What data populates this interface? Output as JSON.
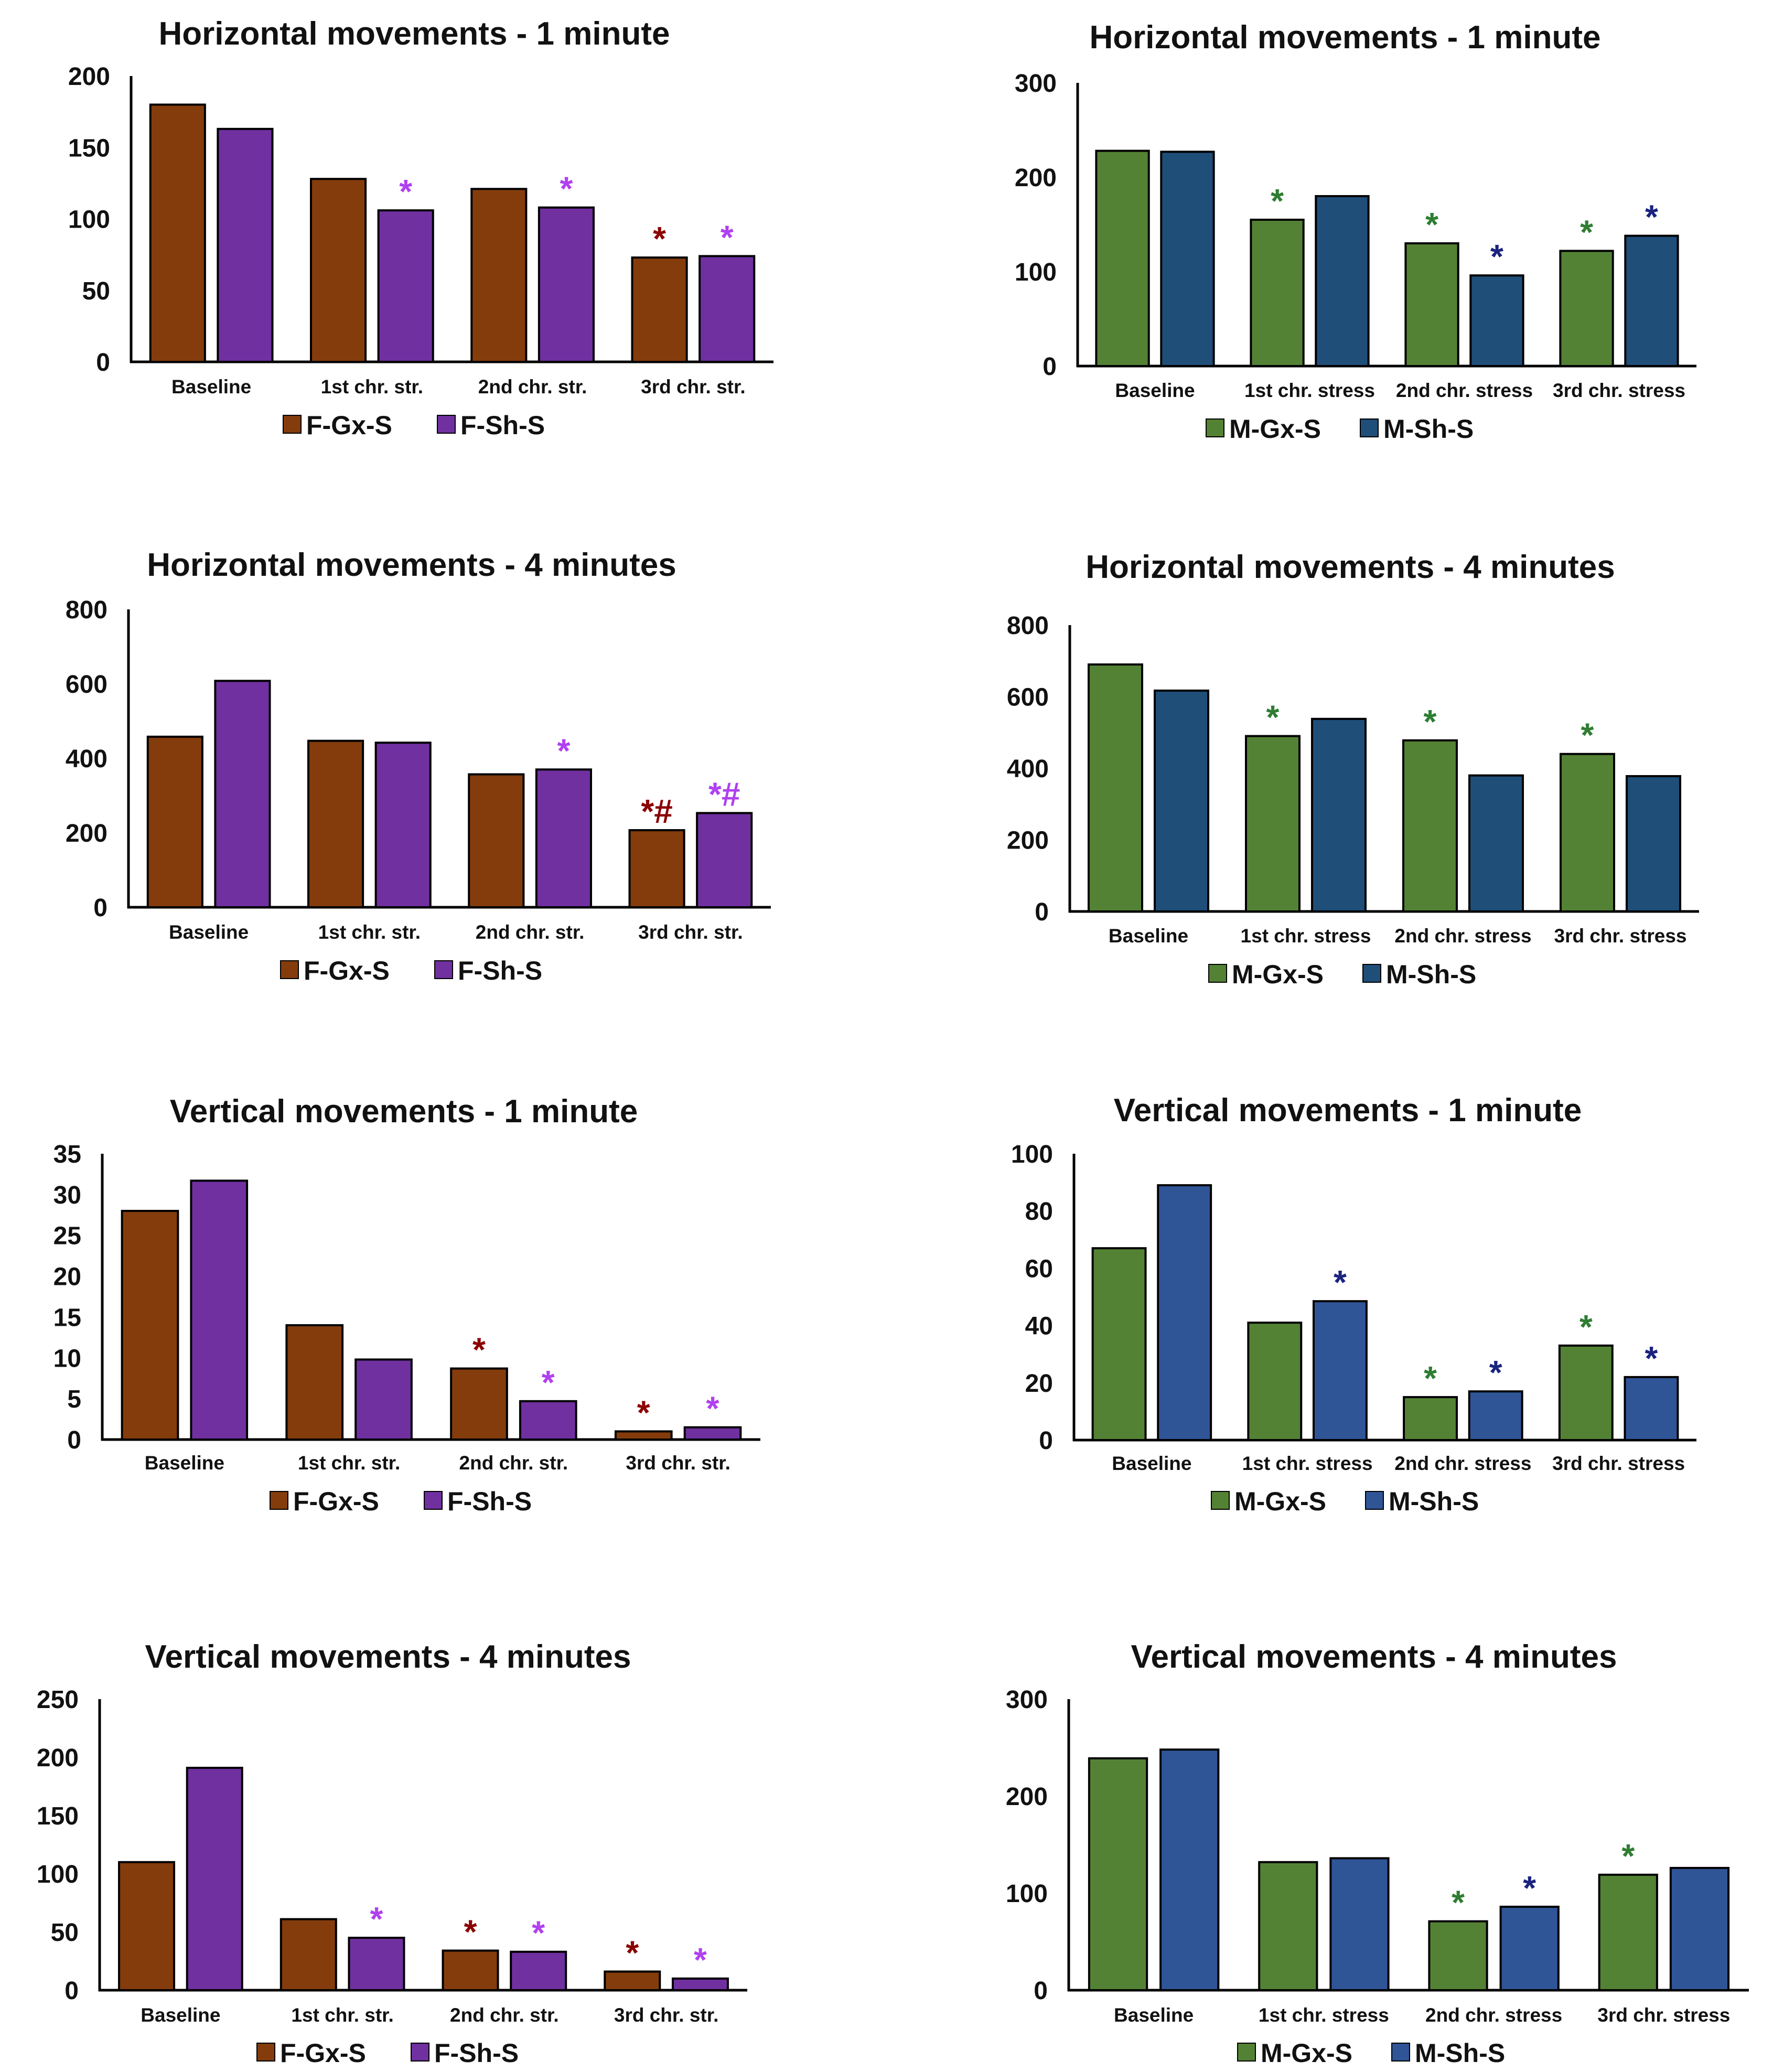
{
  "chart_data": [
    {
      "type": "bar",
      "title": "Horizontal movements - 1 minute",
      "categories": [
        "Baseline",
        "1st chr. str.",
        "2nd chr. str.",
        "3rd chr. str."
      ],
      "yticks": [
        "0",
        "50",
        "100",
        "150",
        "200"
      ],
      "ylim": [
        0,
        200
      ],
      "series": [
        {
          "name": "F-Gx-S",
          "values": [
            180,
            128,
            121,
            73
          ],
          "color": "#843C0C",
          "marks": [
            "",
            "",
            "",
            "*"
          ],
          "mark_color": "#8B0000"
        },
        {
          "name": "F-Sh-S",
          "values": [
            163,
            106,
            108,
            74
          ],
          "color": "#7030A0",
          "marks": [
            "",
            "*",
            "*",
            "*"
          ],
          "mark_color": "#B040F0"
        }
      ]
    },
    {
      "type": "bar",
      "title": "Horizontal movements - 1 minute",
      "categories": [
        "Baseline",
        "1st chr. stress",
        "2nd chr. stress",
        "3rd chr. stress"
      ],
      "yticks": [
        "0",
        "100",
        "200",
        "300"
      ],
      "ylim": [
        0,
        300
      ],
      "series": [
        {
          "name": "M-Gx-S",
          "values": [
            228,
            155,
            130,
            122
          ],
          "color": "#548235",
          "marks": [
            "",
            "*",
            "*",
            "*"
          ],
          "mark_color": "#2E7D32"
        },
        {
          "name": "M-Sh-S",
          "values": [
            227,
            180,
            96,
            138
          ],
          "color": "#1F4E79",
          "marks": [
            "",
            "",
            "*",
            "*"
          ],
          "mark_color": "#1A237E"
        }
      ]
    },
    {
      "type": "bar",
      "title": "Horizontal movements - 4 minutes",
      "categories": [
        "Baseline",
        "1st chr. str.",
        "2nd chr. str.",
        "3rd chr. str."
      ],
      "yticks": [
        "0",
        "200",
        "400",
        "600",
        "800"
      ],
      "ylim": [
        0,
        800
      ],
      "series": [
        {
          "name": "F-Gx-S",
          "values": [
            458,
            447,
            357,
            207
          ],
          "color": "#843C0C",
          "marks": [
            "",
            "",
            "",
            "*#"
          ],
          "mark_color": "#8B0000"
        },
        {
          "name": "F-Sh-S",
          "values": [
            608,
            442,
            370,
            253
          ],
          "color": "#7030A0",
          "marks": [
            "",
            "",
            "*",
            "*#"
          ],
          "mark_color": "#B040F0"
        }
      ]
    },
    {
      "type": "bar",
      "title": "Horizontal movements - 4 minutes",
      "categories": [
        "Baseline",
        "1st chr. stress",
        "2nd chr. stress",
        "3rd chr. stress"
      ],
      "yticks": [
        "0",
        "200",
        "400",
        "600",
        "800"
      ],
      "ylim": [
        0,
        800
      ],
      "series": [
        {
          "name": "M-Gx-S",
          "values": [
            690,
            490,
            478,
            440
          ],
          "color": "#548235",
          "marks": [
            "",
            "*",
            "*",
            "*"
          ],
          "mark_color": "#2E7D32"
        },
        {
          "name": "M-Sh-S",
          "values": [
            617,
            538,
            380,
            378
          ],
          "color": "#1F4E79",
          "marks": [
            "",
            "",
            "",
            ""
          ],
          "mark_color": "#1A237E"
        }
      ]
    },
    {
      "type": "bar",
      "title": "Vertical movements - 1 minute",
      "categories": [
        "Baseline",
        "1st chr. str.",
        "2nd chr. str.",
        "3rd chr. str."
      ],
      "yticks": [
        "0",
        "5",
        "10",
        "15",
        "20",
        "25",
        "30",
        "35"
      ],
      "ylim": [
        0,
        35
      ],
      "series": [
        {
          "name": "F-Gx-S",
          "values": [
            28,
            14,
            8.7,
            1.0
          ],
          "color": "#843C0C",
          "marks": [
            "",
            "",
            "*",
            "*"
          ],
          "mark_color": "#8B0000"
        },
        {
          "name": "F-Sh-S",
          "values": [
            31.7,
            9.8,
            4.7,
            1.5
          ],
          "color": "#7030A0",
          "marks": [
            "",
            "",
            "*",
            "*"
          ],
          "mark_color": "#B040F0"
        }
      ]
    },
    {
      "type": "bar",
      "title": "Vertical movements - 1 minute",
      "categories": [
        "Baseline",
        "1st chr. stress",
        "2nd chr. stress",
        "3rd chr. stress"
      ],
      "yticks": [
        "0",
        "20",
        "40",
        "60",
        "80",
        "100"
      ],
      "ylim": [
        0,
        100
      ],
      "series": [
        {
          "name": "M-Gx-S",
          "values": [
            67,
            41,
            15,
            33
          ],
          "color": "#548235",
          "marks": [
            "",
            "",
            "*",
            "*"
          ],
          "mark_color": "#2E7D32"
        },
        {
          "name": "M-Sh-S",
          "values": [
            89,
            48.5,
            17,
            22
          ],
          "color": "#2F5597",
          "marks": [
            "",
            "*",
            "*",
            "*"
          ],
          "mark_color": "#1A237E"
        }
      ]
    },
    {
      "type": "bar",
      "title": "Vertical movements - 4 minutes",
      "categories": [
        "Baseline",
        "1st chr. str.",
        "2nd chr. str.",
        "3rd chr. str."
      ],
      "yticks": [
        "0",
        "50",
        "100",
        "150",
        "200",
        "250"
      ],
      "ylim": [
        0,
        250
      ],
      "series": [
        {
          "name": "F-Gx-S",
          "values": [
            110,
            61,
            34,
            16
          ],
          "color": "#843C0C",
          "marks": [
            "",
            "",
            "*",
            "*"
          ],
          "mark_color": "#8B0000"
        },
        {
          "name": "F-Sh-S",
          "values": [
            191,
            45,
            33,
            10
          ],
          "color": "#7030A0",
          "marks": [
            "",
            "*",
            "*",
            "*"
          ],
          "mark_color": "#B040F0"
        }
      ]
    },
    {
      "type": "bar",
      "title": "Vertical movements - 4 minutes",
      "categories": [
        "Baseline",
        "1st chr. stress",
        "2nd chr. stress",
        "3rd chr. stress"
      ],
      "yticks": [
        "0",
        "100",
        "200",
        "300"
      ],
      "ylim": [
        0,
        300
      ],
      "series": [
        {
          "name": "M-Gx-S",
          "values": [
            239,
            132,
            71,
            119
          ],
          "color": "#548235",
          "marks": [
            "",
            "",
            "*",
            "*"
          ],
          "mark_color": "#2E7D32"
        },
        {
          "name": "M-Sh-S",
          "values": [
            248,
            136,
            86,
            126
          ],
          "color": "#2F5597",
          "marks": [
            "",
            "",
            "*",
            ""
          ],
          "mark_color": "#1A237E"
        }
      ]
    }
  ]
}
